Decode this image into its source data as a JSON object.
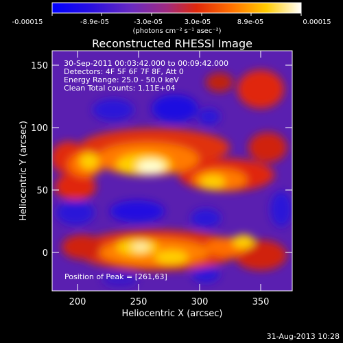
{
  "colorbar": {
    "tick_labels": [
      "-0.00015",
      "-8.9e-05",
      "-3.0e-05",
      "3.0e-05",
      "8.9e-05",
      "0.00015"
    ],
    "units_label": "(photons cm⁻² s⁻¹ asec⁻²)",
    "colors": [
      "#0000ff",
      "#3a1fd0",
      "#7a2fb0",
      "#b03070",
      "#e8280a",
      "#ff7a00",
      "#ffd000",
      "#ffffff"
    ]
  },
  "plot": {
    "title": "Reconstructed RHESSI Image",
    "xlabel": "Heliocentric X (arcsec)",
    "ylabel": "Heliocentric Y (arcsec)",
    "x_ticks": [
      "200",
      "250",
      "300",
      "350"
    ],
    "y_ticks": [
      "150",
      "100",
      "50",
      "0"
    ],
    "xlim": [
      180,
      373
    ],
    "ylim": [
      -30,
      162
    ]
  },
  "info": {
    "time_range": "30-Sep-2011 00:03:42.000 to 00:09:42.000",
    "detectors": "Detectors: 4F 5F 6F 7F 8F, Att 0",
    "energy_range": "Energy Range: 25.0 - 50.0 keV",
    "clean_counts": "Clean     Total counts: 1.11E+04",
    "peak_position": "Position of Peak = [261,63]"
  },
  "footer": {
    "timestamp": "31-Aug-2013 10:28"
  }
}
